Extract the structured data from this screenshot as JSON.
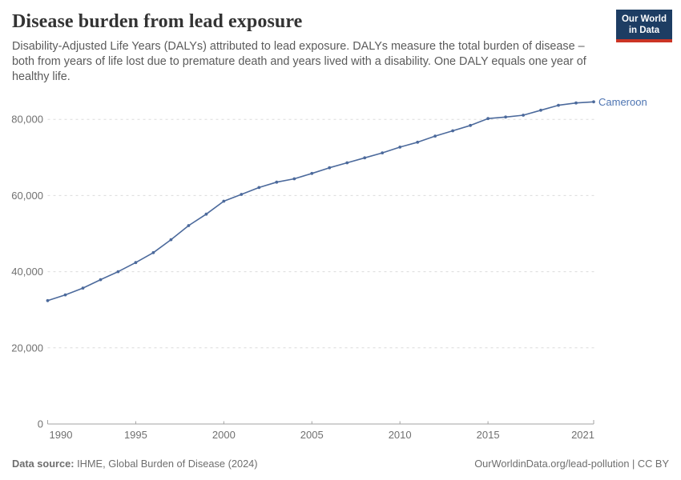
{
  "header": {
    "title": "Disease burden from lead exposure",
    "subtitle": "Disability-Adjusted Life Years (DALYs) attributed to lead exposure. DALYs measure the total burden of disease – both from years of life lost due to premature death and years lived with a disability. One DALY equals one year of healthy life.",
    "logo_line1": "Our World",
    "logo_line2": "in Data"
  },
  "chart_data": {
    "type": "line",
    "title": "Disease burden from lead exposure",
    "xlabel": "",
    "ylabel": "",
    "xlim": [
      1990,
      2021
    ],
    "ylim": [
      0,
      88500
    ],
    "grid": "horizontal-dashed",
    "legend_position": "end-of-line-label",
    "x_ticks": [
      1990,
      1995,
      2000,
      2005,
      2010,
      2015,
      2021
    ],
    "x_tick_labels": [
      "1990",
      "1995",
      "2000",
      "2005",
      "2010",
      "2015",
      "2021"
    ],
    "y_ticks": [
      0,
      20000,
      40000,
      60000,
      80000
    ],
    "y_tick_labels": [
      "0",
      "20,000",
      "40,000",
      "60,000",
      "80,000"
    ],
    "x": [
      1990,
      1991,
      1992,
      1993,
      1994,
      1995,
      1996,
      1997,
      1998,
      1999,
      2000,
      2001,
      2002,
      2003,
      2004,
      2005,
      2006,
      2007,
      2008,
      2009,
      2010,
      2011,
      2012,
      2013,
      2014,
      2015,
      2016,
      2017,
      2018,
      2019,
      2020,
      2021
    ],
    "series": [
      {
        "name": "Cameroon",
        "color": "#4C6A9C",
        "values": [
          32400,
          33900,
          35700,
          37900,
          40000,
          42400,
          45000,
          48400,
          52100,
          55100,
          58500,
          60300,
          62100,
          63500,
          64400,
          65800,
          67300,
          68600,
          69900,
          71200,
          72700,
          74000,
          75600,
          77000,
          78400,
          80200,
          80600,
          81100,
          82400,
          83700,
          84300,
          84600
        ]
      }
    ]
  },
  "footer": {
    "datasource_label": "Data source:",
    "datasource_value": " IHME, Global Burden of Disease (2024)",
    "link": "OurWorldinData.org/lead-pollution | CC BY"
  },
  "colors": {
    "line": "#4C6A9C",
    "entity_label": "#4D74B2",
    "grid": "#dcdcdc",
    "axis": "#a3a3a3",
    "tick_text": "#707070",
    "title_text": "#333333",
    "subtitle_text": "#5b5b5b",
    "logo_bg": "#1d3d63",
    "logo_stripe": "#cb3425"
  }
}
